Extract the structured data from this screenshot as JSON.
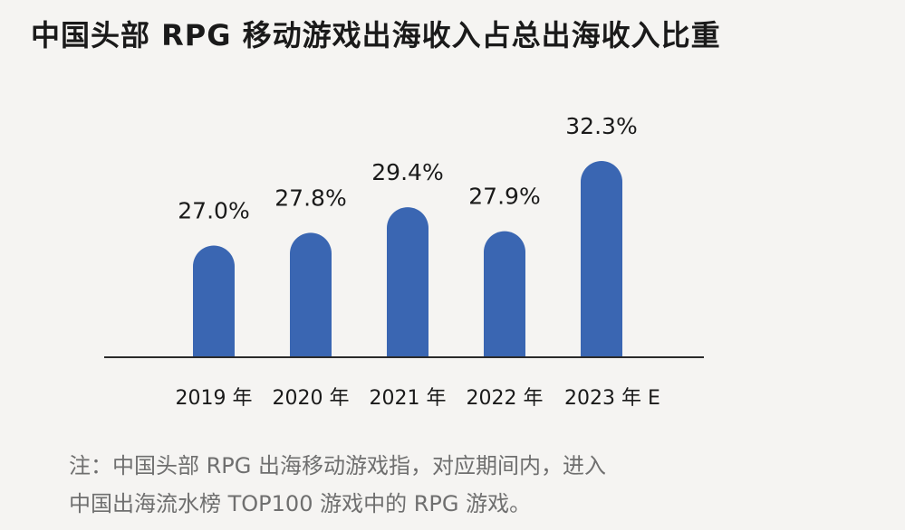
{
  "title": "中国头部 RPG 移动游戏出海收入占总出海收入比重",
  "note_line1": "注：中国头部 RPG 出海移动游戏指，对应期间内，进入",
  "note_line2": "中国出海流水榜 TOP100 游戏中的 RPG 游戏。",
  "chart_data": {
    "type": "bar",
    "title": "中国头部 RPG 移动游戏出海收入占总出海收入比重",
    "categories": [
      "2019 年",
      "2020 年",
      "2021 年",
      "2022 年",
      "2023 年 E"
    ],
    "values": [
      27.0,
      27.8,
      29.4,
      27.9,
      32.3
    ],
    "labels": [
      "27.0%",
      "27.8%",
      "29.4%",
      "27.9%",
      "32.3%"
    ],
    "unit": "%",
    "color": "#3a66b2",
    "xlabel": "",
    "ylabel": "",
    "ylim": [
      20,
      33
    ],
    "grid": false,
    "legend": "none"
  }
}
